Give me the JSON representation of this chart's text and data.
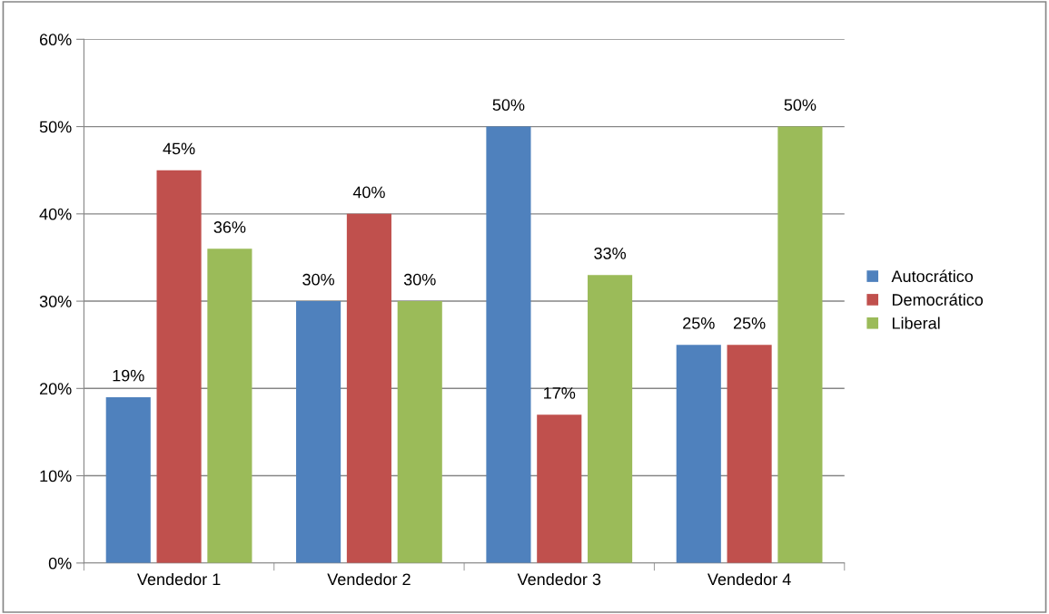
{
  "chart_data": {
    "type": "bar",
    "categories": [
      "Vendedor 1",
      "Vendedor 2",
      "Vendedor 3",
      "Vendedor 4"
    ],
    "series": [
      {
        "name": "Autocrático",
        "color": "#4f81bd",
        "values": [
          19,
          30,
          50,
          25
        ],
        "value_labels": [
          "19%",
          "30%",
          "50%",
          "25%"
        ]
      },
      {
        "name": "Democrático",
        "color": "#c0504d",
        "values": [
          45,
          40,
          17,
          25
        ],
        "value_labels": [
          "45%",
          "40%",
          "17%",
          "25%"
        ]
      },
      {
        "name": "Liberal",
        "color": "#9bbb59",
        "values": [
          36,
          30,
          33,
          50
        ],
        "value_labels": [
          "36%",
          "30%",
          "33%",
          "50%"
        ]
      }
    ],
    "ylim": [
      0,
      60
    ],
    "yticks": [
      {
        "value": 0,
        "label": "0%"
      },
      {
        "value": 10,
        "label": "10%"
      },
      {
        "value": 20,
        "label": "20%"
      },
      {
        "value": 30,
        "label": "30%"
      },
      {
        "value": 40,
        "label": "40%"
      },
      {
        "value": 50,
        "label": "50%"
      },
      {
        "value": 60,
        "label": "60%"
      }
    ],
    "grid": "y",
    "legend": "right"
  }
}
